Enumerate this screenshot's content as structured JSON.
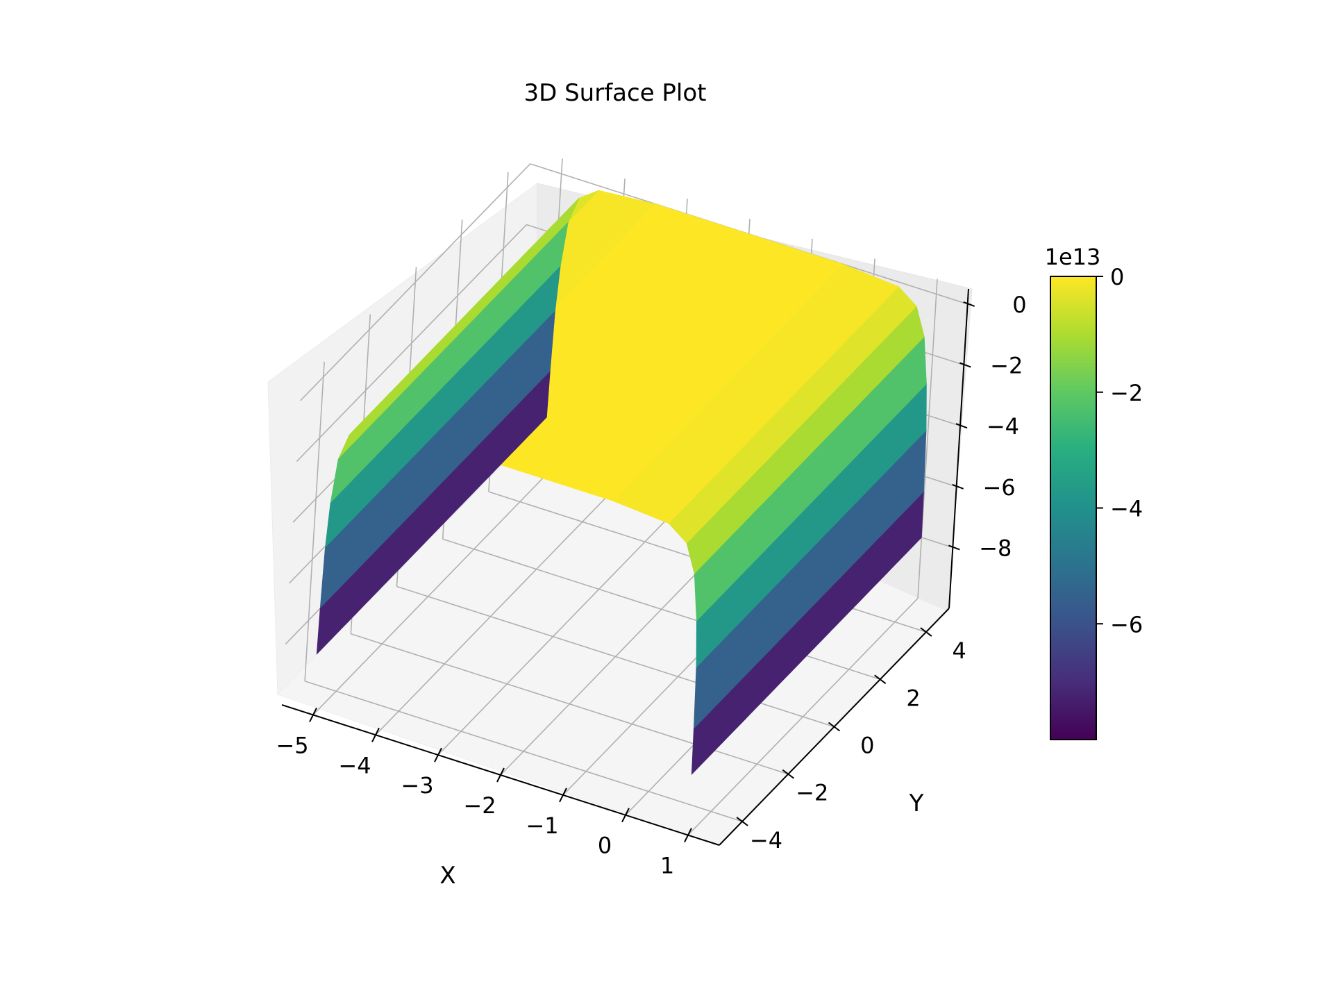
{
  "chart_data": {
    "type": "surface3d",
    "title": "3D Surface Plot",
    "xlabel": "X",
    "ylabel": "Y",
    "zlabel": "",
    "colormap": "viridis",
    "x_range": [
      -5.5,
      1.5
    ],
    "y_range": [
      -5,
      5
    ],
    "z_range": [
      -10,
      0.5
    ],
    "x_ticks": [
      "−5",
      "−4",
      "−3",
      "−2",
      "−1",
      "0",
      "1"
    ],
    "x_tick_values": [
      -5,
      -4,
      -3,
      -2,
      -1,
      0,
      1
    ],
    "y_ticks": [
      "−4",
      "−2",
      "0",
      "2",
      "4"
    ],
    "y_tick_values": [
      -4,
      -2,
      0,
      2,
      4
    ],
    "z_ticks": [
      "0",
      "−2",
      "−4",
      "−6",
      "−8"
    ],
    "z_tick_values": [
      0,
      -2,
      -4,
      -6,
      -8
    ],
    "z_scale_label": "1e13",
    "profile_x": [
      -5.0,
      -4.99,
      -4.97,
      -4.93,
      -4.85,
      -4.7,
      -4.4,
      -3.5,
      -2.0,
      -0.5,
      0.4,
      0.7,
      0.85,
      0.93,
      0.97,
      0.99,
      1.0
    ],
    "profile_z": [
      -8.0,
      -6.5,
      -4.5,
      -3.0,
      -1.5,
      -0.6,
      -0.15,
      0.0,
      0.0,
      0.0,
      -0.15,
      -0.6,
      -1.5,
      -3.0,
      -4.5,
      -6.5,
      -8.0
    ],
    "colorbar": {
      "label": "1e13",
      "ticks": [
        "0",
        "−2",
        "−4",
        "−6"
      ],
      "tick_values": [
        0,
        -2,
        -4,
        -6
      ],
      "range": [
        -8,
        0
      ]
    },
    "grid": true
  }
}
